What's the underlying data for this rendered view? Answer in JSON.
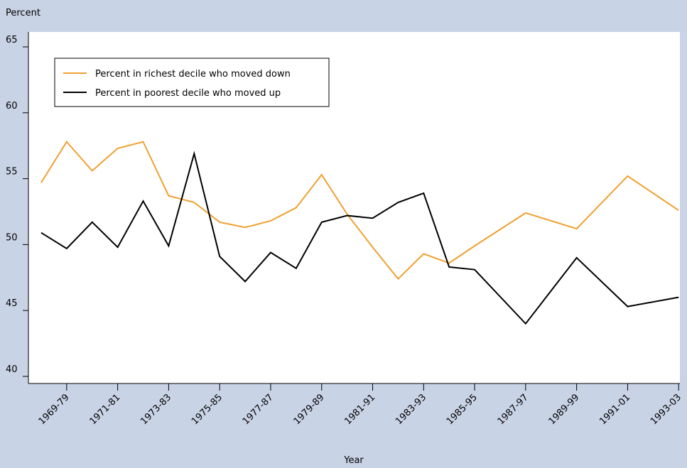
{
  "chart_data": {
    "type": "line",
    "y_axis_label": "Percent",
    "x_axis_label": "Year",
    "x": [
      1968,
      1969,
      1970,
      1971,
      1972,
      1973,
      1974,
      1975,
      1976,
      1977,
      1978,
      1979,
      1980,
      1981,
      1982,
      1983,
      1984,
      1985,
      1987,
      1989,
      1991,
      1993
    ],
    "series": [
      {
        "name": "Percent in richest decile who moved down",
        "color": "#f0a030",
        "values": [
          54.7,
          57.8,
          55.6,
          57.3,
          57.8,
          53.7,
          53.2,
          51.7,
          51.3,
          51.8,
          52.8,
          55.3,
          52.3,
          49.8,
          47.4,
          49.3,
          48.6,
          49.9,
          52.4,
          51.2,
          55.2,
          52.6
        ]
      },
      {
        "name": "Percent in poorest decile who moved up",
        "color": "#000000",
        "values": [
          50.9,
          49.7,
          51.7,
          49.8,
          53.3,
          49.9,
          56.9,
          49.1,
          47.2,
          49.4,
          48.2,
          51.7,
          52.2,
          52.0,
          53.2,
          53.9,
          48.3,
          48.1,
          44.0,
          49.0,
          45.3,
          46.0
        ]
      }
    ],
    "xlim": [
      1967.5,
      1993.05
    ],
    "xticks": [
      {
        "value": 1969,
        "label": "1969-79"
      },
      {
        "value": 1971,
        "label": "1971-81"
      },
      {
        "value": 1973,
        "label": "1973-83"
      },
      {
        "value": 1975,
        "label": "1975-85"
      },
      {
        "value": 1977,
        "label": "1977-87"
      },
      {
        "value": 1979,
        "label": "1979-89"
      },
      {
        "value": 1981,
        "label": "1981-91"
      },
      {
        "value": 1983,
        "label": "1983-93"
      },
      {
        "value": 1985,
        "label": "1985-95"
      },
      {
        "value": 1987,
        "label": "1987-97"
      },
      {
        "value": 1989,
        "label": "1989-99"
      },
      {
        "value": 1991,
        "label": "1991-01"
      },
      {
        "value": 1993,
        "label": "1993-03"
      }
    ],
    "ylim": [
      40,
      65
    ],
    "yticks": [
      40,
      45,
      50,
      55,
      60,
      65
    ],
    "legend": "upper left"
  }
}
